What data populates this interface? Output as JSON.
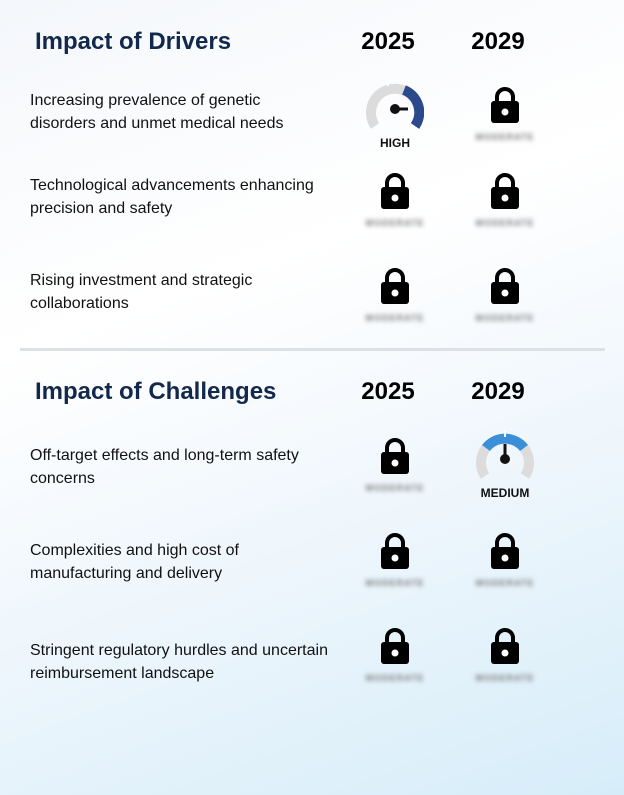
{
  "drivers": {
    "title": "Impact of Drivers",
    "year1": "2025",
    "year2": "2029",
    "rows": [
      {
        "label": "Increasing prevalence of genetic disorders and unmet medical needs",
        "y2025": {
          "kind": "gauge",
          "level": "HIGH",
          "color": "#2b4a8c"
        },
        "y2029": {
          "kind": "locked",
          "hidden": "MODERATE"
        }
      },
      {
        "label": "Technological advancements enhancing precision and safety",
        "y2025": {
          "kind": "locked",
          "hidden": "MODERATE"
        },
        "y2029": {
          "kind": "locked",
          "hidden": "MODERATE"
        }
      },
      {
        "label": "Rising investment and strategic collaborations",
        "y2025": {
          "kind": "locked",
          "hidden": "MODERATE"
        },
        "y2029": {
          "kind": "locked",
          "hidden": "MODERATE"
        }
      }
    ]
  },
  "challenges": {
    "title": "Impact of Challenges",
    "year1": "2025",
    "year2": "2029",
    "rows": [
      {
        "label": "Off-target effects and long-term safety concerns",
        "y2025": {
          "kind": "locked",
          "hidden": "MODERATE"
        },
        "y2029": {
          "kind": "gauge",
          "level": "MEDIUM",
          "color": "#3b8fd9"
        }
      },
      {
        "label": "Complexities and high cost of manufacturing and delivery",
        "y2025": {
          "kind": "locked",
          "hidden": "MODERATE"
        },
        "y2029": {
          "kind": "locked",
          "hidden": "MODERATE"
        }
      },
      {
        "label": "Stringent regulatory hurdles and uncertain reimbursement landscape",
        "y2025": {
          "kind": "locked",
          "hidden": "MODERATE"
        },
        "y2029": {
          "kind": "locked",
          "hidden": "MODERATE"
        }
      }
    ]
  },
  "icons": {
    "lock": "lock-icon",
    "gauge": "gauge-icon"
  }
}
